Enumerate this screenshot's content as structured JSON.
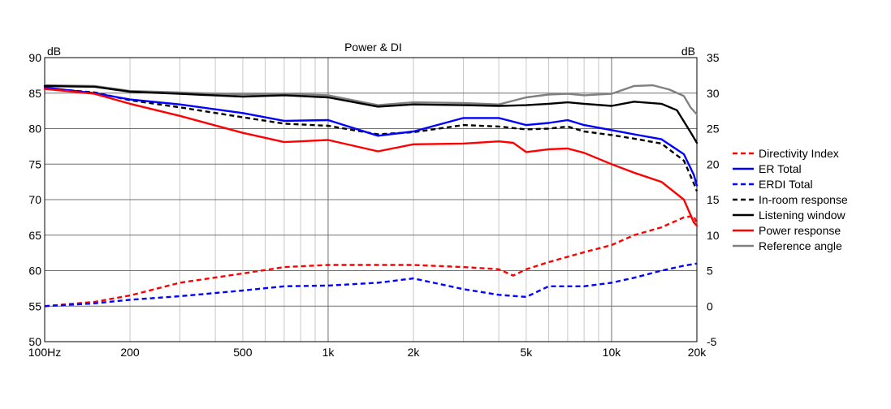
{
  "chart_data": {
    "type": "line",
    "title": "Power & DI",
    "x_scale": "log",
    "xlim": [
      100,
      20000
    ],
    "ylim_left": [
      50,
      90
    ],
    "ylim_right": [
      -5,
      35
    ],
    "y_left_unit": "dB",
    "y_right_unit": "dB",
    "x_ticks": [
      {
        "value": 100,
        "label": "100Hz"
      },
      {
        "value": 200,
        "label": "200"
      },
      {
        "value": 500,
        "label": "500"
      },
      {
        "value": 1000,
        "label": "1k"
      },
      {
        "value": 2000,
        "label": "2k"
      },
      {
        "value": 5000,
        "label": "5k"
      },
      {
        "value": 10000,
        "label": "10k"
      },
      {
        "value": 20000,
        "label": "20k"
      }
    ],
    "y_left_ticks": [
      "90",
      "85",
      "80",
      "75",
      "70",
      "65",
      "60",
      "55",
      "50"
    ],
    "y_right_ticks": [
      "35",
      "30",
      "25",
      "20",
      "15",
      "10",
      "5",
      "0",
      "-5"
    ],
    "grid": true,
    "legend_position": "right",
    "series": [
      {
        "name": "Directivity Index",
        "color": "#ff0000",
        "dash": true,
        "axis": "right",
        "x": [
          100,
          150,
          200,
          300,
          500,
          700,
          1000,
          1500,
          2000,
          3000,
          4000,
          4500,
          5000,
          6000,
          8000,
          10000,
          12000,
          15000,
          18000,
          19500,
          20000
        ],
        "y": [
          0,
          0.6,
          1.5,
          3.3,
          4.6,
          5.5,
          5.8,
          5.8,
          5.8,
          5.5,
          5.2,
          4.3,
          5.2,
          6.2,
          7.6,
          8.6,
          10,
          11.1,
          12.5,
          12.7,
          11.6
        ]
      },
      {
        "name": "ER Total",
        "color": "#0000ff",
        "dash": false,
        "axis": "left",
        "x": [
          100,
          150,
          200,
          300,
          500,
          700,
          1000,
          1500,
          2000,
          3000,
          4000,
          5000,
          6000,
          7000,
          8000,
          10000,
          12000,
          15000,
          18000,
          19500,
          20000
        ],
        "y": [
          85.8,
          85,
          84.1,
          83.4,
          82.2,
          81.1,
          81.2,
          79,
          79.6,
          81.5,
          81.5,
          80.5,
          80.8,
          81.2,
          80.5,
          79.8,
          79.2,
          78.5,
          76.4,
          73.5,
          72
        ]
      },
      {
        "name": "ERDI Total",
        "color": "#0000ff",
        "dash": true,
        "axis": "right",
        "x": [
          100,
          150,
          200,
          300,
          500,
          700,
          1000,
          1500,
          2000,
          3000,
          4000,
          5000,
          6000,
          8000,
          10000,
          12000,
          15000,
          18000,
          20000
        ],
        "y": [
          0,
          0.4,
          0.9,
          1.4,
          2.2,
          2.8,
          2.9,
          3.3,
          3.9,
          2.4,
          1.6,
          1.3,
          2.8,
          2.8,
          3.3,
          4,
          5,
          5.7,
          6
        ]
      },
      {
        "name": "In-room response",
        "color": "#000000",
        "dash": true,
        "axis": "left",
        "x": [
          100,
          150,
          200,
          300,
          500,
          700,
          1000,
          1500,
          2000,
          3000,
          4000,
          5000,
          6000,
          7000,
          8000,
          10000,
          12000,
          15000,
          18000,
          19500,
          20000
        ],
        "y": [
          85.7,
          85.1,
          84,
          83,
          81.6,
          80.7,
          80.4,
          79.2,
          79.5,
          80.5,
          80.3,
          79.9,
          80,
          80.3,
          79.6,
          79.1,
          78.6,
          77.9,
          75.5,
          72.3,
          71.2
        ]
      },
      {
        "name": "Listening window",
        "color": "#000000",
        "dash": false,
        "axis": "left",
        "x": [
          100,
          150,
          200,
          300,
          500,
          700,
          1000,
          1500,
          2000,
          3000,
          4000,
          5000,
          6000,
          7000,
          8000,
          10000,
          12000,
          15000,
          17000,
          19000,
          20000
        ],
        "y": [
          86,
          85.9,
          85.2,
          84.9,
          84.5,
          84.7,
          84.4,
          83.1,
          83.4,
          83.3,
          83.2,
          83.3,
          83.5,
          83.7,
          83.5,
          83.2,
          83.8,
          83.5,
          82.6,
          79.5,
          78
        ]
      },
      {
        "name": "Power response",
        "color": "#ff0000",
        "dash": false,
        "axis": "left",
        "x": [
          100,
          150,
          200,
          300,
          500,
          700,
          1000,
          1500,
          2000,
          3000,
          4000,
          4500,
          5000,
          6000,
          7000,
          8000,
          10000,
          12000,
          15000,
          18000,
          19500,
          20000
        ],
        "y": [
          85.6,
          84.9,
          83.5,
          81.8,
          79.4,
          78.1,
          78.4,
          76.8,
          77.8,
          77.9,
          78.2,
          78,
          76.7,
          77.1,
          77.2,
          76.6,
          75,
          73.8,
          72.5,
          70,
          66.8,
          66.3
        ]
      },
      {
        "name": "Reference angle",
        "color": "#808080",
        "dash": false,
        "axis": "left",
        "x": [
          100,
          150,
          200,
          300,
          500,
          700,
          1000,
          1500,
          2000,
          3000,
          4000,
          5000,
          6000,
          7000,
          8000,
          10000,
          12000,
          14000,
          16000,
          18000,
          19000,
          20000
        ],
        "y": [
          86.1,
          86,
          85.3,
          85.1,
          84.8,
          84.9,
          84.7,
          83.3,
          83.7,
          83.6,
          83.4,
          84.4,
          84.8,
          84.9,
          84.7,
          84.9,
          86,
          86.1,
          85.5,
          84.6,
          83,
          82
        ]
      }
    ]
  }
}
